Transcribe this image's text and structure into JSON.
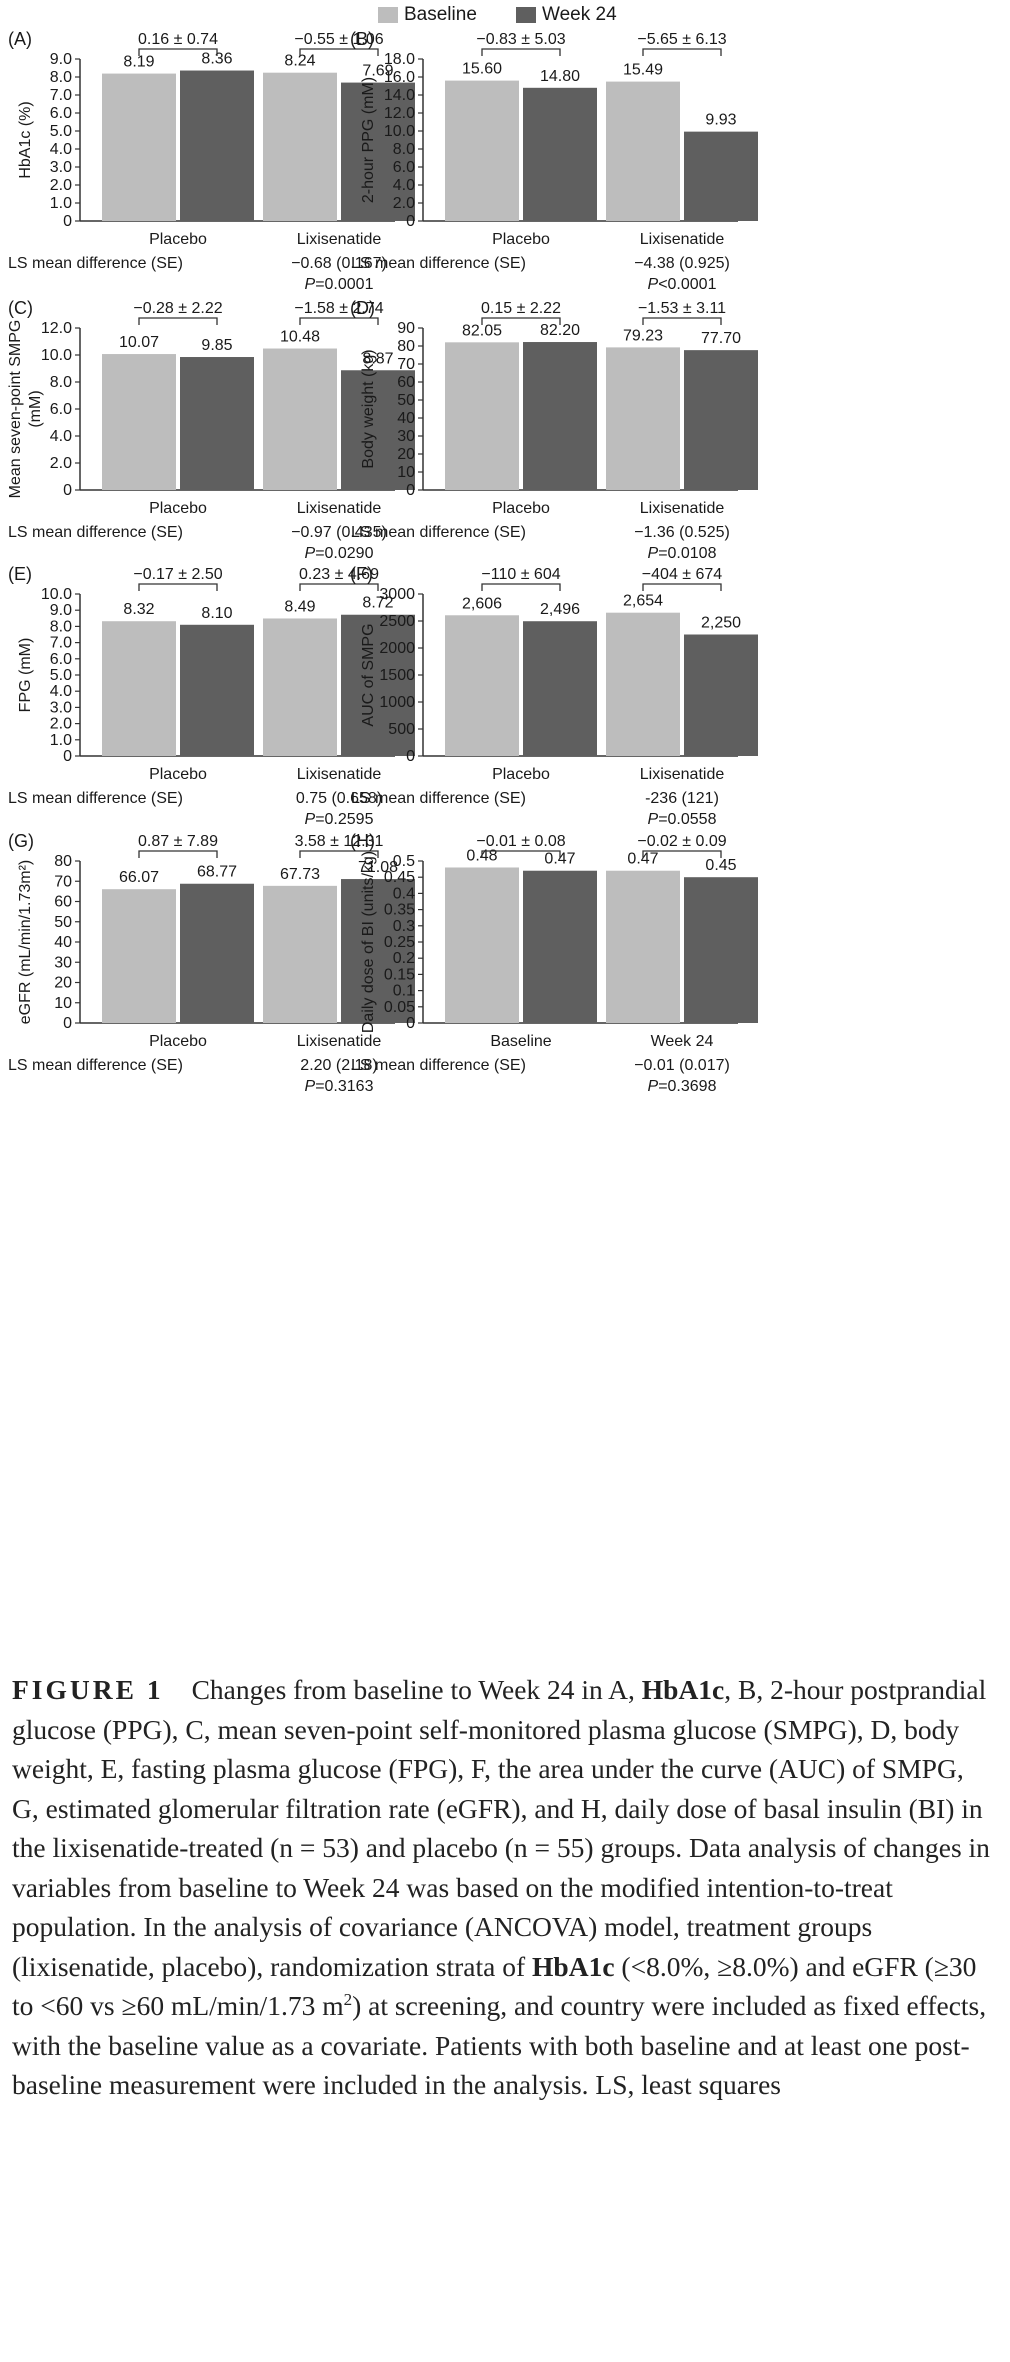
{
  "legend": {
    "baseline": "Baseline",
    "week24": "Week 24",
    "colors": {
      "baseline": "#bdbdbd",
      "week24": "#5f5f5f"
    }
  },
  "chart_data": [
    {
      "type": "bar",
      "panel": "(A)",
      "ylabel": "HbA1c (%)",
      "ylim": [
        0,
        9
      ],
      "ticks": [
        "0",
        "1.0",
        "2.0",
        "3.0",
        "4.0",
        "5.0",
        "6.0",
        "7.0",
        "8.0",
        "9.0"
      ],
      "categories": [
        "Placebo",
        "Lixisenatide"
      ],
      "series": [
        {
          "name": "Baseline",
          "values": [
            8.19,
            8.24
          ],
          "labels": [
            "8.19",
            "8.24"
          ]
        },
        {
          "name": "Week 24",
          "values": [
            8.36,
            7.69
          ],
          "labels": [
            "8.36",
            "7.69"
          ]
        }
      ],
      "changes": [
        "0.16 ± 0.74",
        "−0.55 ± 1.06"
      ],
      "diff_label": "LS mean difference (SE)",
      "diff_value": "−0.68 (0.167)",
      "p_value": "0.0001",
      "p_prefix": "P",
      "p_op": "="
    },
    {
      "type": "bar",
      "panel": "(B)",
      "ylabel": "2-hour PPG (mM)",
      "ylim": [
        0,
        18
      ],
      "ticks": [
        "0",
        "2.0",
        "4.0",
        "6.0",
        "8.0",
        "10.0",
        "12.0",
        "14.0",
        "16.0",
        "18.0"
      ],
      "categories": [
        "Placebo",
        "Lixisenatide"
      ],
      "series": [
        {
          "name": "Baseline",
          "values": [
            15.6,
            15.49
          ],
          "labels": [
            "15.60",
            "15.49"
          ]
        },
        {
          "name": "Week 24",
          "values": [
            14.8,
            9.93
          ],
          "labels": [
            "14.80",
            "9.93"
          ]
        }
      ],
      "changes": [
        "−0.83 ± 5.03",
        "−5.65 ± 6.13"
      ],
      "diff_label": "LS mean difference (SE)",
      "diff_value": "−4.38 (0.925)",
      "p_value": "0.0001",
      "p_prefix": "P",
      "p_op": "<"
    },
    {
      "type": "bar",
      "panel": "(C)",
      "ylabel": "Mean seven-point SMPG (mM)",
      "ylim": [
        0,
        12
      ],
      "ticks": [
        "0",
        "2.0",
        "4.0",
        "6.0",
        "8.0",
        "10.0",
        "12.0"
      ],
      "categories": [
        "Placebo",
        "Lixisenatide"
      ],
      "series": [
        {
          "name": "Baseline",
          "values": [
            10.07,
            10.48
          ],
          "labels": [
            "10.07",
            "10.48"
          ]
        },
        {
          "name": "Week 24",
          "values": [
            9.85,
            8.87
          ],
          "labels": [
            "9.85",
            "8.87"
          ]
        }
      ],
      "changes": [
        "−0.28 ± 2.22",
        "−1.58 ± 2.74"
      ],
      "diff_label": "LS mean difference (SE)",
      "diff_value": "−0.97 (0.435)",
      "p_value": "0.0290",
      "p_prefix": "P",
      "p_op": "="
    },
    {
      "type": "bar",
      "panel": "(D)",
      "ylabel": "Body weight (kg)",
      "ylim": [
        0,
        90
      ],
      "ticks": [
        "0",
        "10",
        "20",
        "30",
        "40",
        "50",
        "60",
        "70",
        "80",
        "90"
      ],
      "categories": [
        "Placebo",
        "Lixisenatide"
      ],
      "series": [
        {
          "name": "Baseline",
          "values": [
            82.05,
            79.23
          ],
          "labels": [
            "82.05",
            "79.23"
          ]
        },
        {
          "name": "Week 24",
          "values": [
            82.2,
            77.7
          ],
          "labels": [
            "82.20",
            "77.70"
          ]
        }
      ],
      "changes": [
        "0.15 ± 2.22",
        "−1.53 ± 3.11"
      ],
      "diff_label": "LS mean difference (SE)",
      "diff_value": "−1.36 (0.525)",
      "p_value": "0.0108",
      "p_prefix": "P",
      "p_op": "="
    },
    {
      "type": "bar",
      "panel": "(E)",
      "ylabel": "FPG (mM)",
      "ylim": [
        0,
        10
      ],
      "ticks": [
        "0",
        "1.0",
        "2.0",
        "3.0",
        "4.0",
        "5.0",
        "6.0",
        "7.0",
        "8.0",
        "9.0",
        "10.0"
      ],
      "categories": [
        "Placebo",
        "Lixisenatide"
      ],
      "series": [
        {
          "name": "Baseline",
          "values": [
            8.32,
            8.49
          ],
          "labels": [
            "8.32",
            "8.49"
          ]
        },
        {
          "name": "Week 24",
          "values": [
            8.1,
            8.72
          ],
          "labels": [
            "8.10",
            "8.72"
          ]
        }
      ],
      "changes": [
        "−0.17 ± 2.50",
        "0.23 ± 4.69"
      ],
      "diff_label": "LS mean difference (SE)",
      "diff_value": "0.75 (0.658)",
      "p_value": "0.2595",
      "p_prefix": "P",
      "p_op": "="
    },
    {
      "type": "bar",
      "panel": "(F)",
      "ylabel": "AUC of SMPG",
      "ylim": [
        0,
        3000
      ],
      "ticks": [
        "0",
        "500",
        "1000",
        "1500",
        "2000",
        "2500",
        "3000"
      ],
      "categories": [
        "Placebo",
        "Lixisenatide"
      ],
      "series": [
        {
          "name": "Baseline",
          "values": [
            2606,
            2654
          ],
          "labels": [
            "2,606",
            "2,654"
          ]
        },
        {
          "name": "Week 24",
          "values": [
            2496,
            2250
          ],
          "labels": [
            "2,496",
            "2,250"
          ]
        }
      ],
      "changes": [
        "−110 ± 604",
        "−404 ± 674"
      ],
      "diff_label": "LS mean difference (SE)",
      "diff_value": "-236 (121)",
      "p_value": "0.0558",
      "p_prefix": "P",
      "p_op": "="
    },
    {
      "type": "bar",
      "panel": "(G)",
      "ylabel": "eGFR (mL/min/1.73m²)",
      "ylim": [
        0,
        80
      ],
      "ticks": [
        "0",
        "10",
        "20",
        "30",
        "40",
        "50",
        "60",
        "70",
        "80"
      ],
      "categories": [
        "Placebo",
        "Lixisenatide"
      ],
      "series": [
        {
          "name": "Baseline",
          "values": [
            66.07,
            67.73
          ],
          "labels": [
            "66.07",
            "67.73"
          ]
        },
        {
          "name": "Week 24",
          "values": [
            68.77,
            71.08
          ],
          "labels": [
            "68.77",
            "71.08"
          ]
        }
      ],
      "changes": [
        "0.87 ± 7.89",
        "3.58 ± 12.31"
      ],
      "diff_label": "LS mean difference (SE)",
      "diff_value": "2.20 (2.18)",
      "p_value": "0.3163",
      "p_prefix": "P",
      "p_op": "="
    },
    {
      "type": "bar",
      "panel": "(H)",
      "ylabel": "Daily dose of BI (units/kg)",
      "ylim": [
        0,
        0.5
      ],
      "ticks": [
        "0",
        "0.05",
        "0.1",
        "0.15",
        "0.2",
        "0.25",
        "0.3",
        "0.35",
        "0.4",
        "0.45",
        "0.5"
      ],
      "categories": [
        "Baseline",
        "Week 24"
      ],
      "series": [
        {
          "name": "Baseline",
          "values": [
            0.48,
            0.47
          ],
          "labels": [
            "0.48",
            "0.47"
          ]
        },
        {
          "name": "Week 24",
          "values": [
            0.47,
            0.45
          ],
          "labels": [
            "0.47",
            "0.45"
          ]
        }
      ],
      "changes": [
        "−0.01 ± 0.08",
        "−0.02 ± 0.09"
      ],
      "diff_label": "LS mean difference (SE)",
      "diff_value": "−0.01 (0.017)",
      "p_value": "0.3698",
      "p_prefix": "P",
      "p_op": "="
    }
  ],
  "caption": {
    "label": "FIGURE 1",
    "t1": "Changes from baseline to Week 24 in A, ",
    "b1": "HbA1c",
    "t2": ", B, 2-hour postprandial glucose (PPG), C, mean seven-point self-monitored plasma glucose (SMPG), D, body weight, E, fasting plasma glucose (FPG), F, the area under the curve (AUC) of SMPG, G, estimated glomerular filtration rate (eGFR), and H, daily dose of basal insulin (BI) in the lixisenatide-treated (n = 53) and placebo (n = 55) groups. Data analysis of changes in variables from baseline to Week 24 was based on the modified intention-to-treat population. In the analysis of covariance (ANCOVA) model, treatment groups (lixisenatide, placebo), randomization strata of ",
    "b2": "HbA1c",
    "t3": " (<8.0%, ≥8.0%) and eGFR (≥30 to <60 vs ≥60 mL/min/1.73 m",
    "sup": "2",
    "t4": ") at screening, and country were included as fixed effects, with the baseline value as a covariate. Patients with both baseline and at least one post-baseline measurement were included in the analysis. LS, least squares"
  }
}
